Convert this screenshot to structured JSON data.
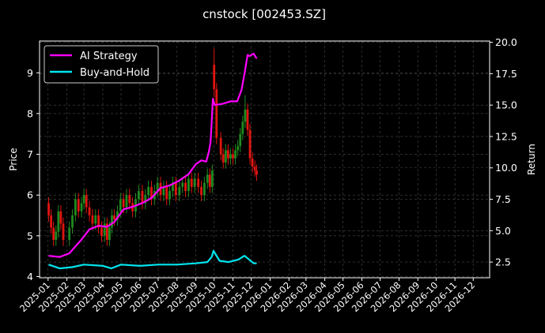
{
  "chart_data": {
    "type": "line",
    "title": "cnstock [002453.SZ]",
    "xlabel": "",
    "ylabel": "Price",
    "y2label": "Return",
    "ylim": [
      3.97,
      9.78
    ],
    "y2lim": [
      1.25,
      20.1
    ],
    "xlim": [
      "2024-12-18",
      "2026-12-28"
    ],
    "grid": true,
    "legend_position": "top-left",
    "x_tick_labels": [
      "2025-01",
      "2025-02",
      "2025-03",
      "2025-04",
      "2025-05",
      "2025-06",
      "2025-07",
      "2025-08",
      "2025-09",
      "2025-10",
      "2025-11",
      "2025-12",
      "2026-01",
      "2026-02",
      "2026-03",
      "2026-04",
      "2026-05",
      "2026-06",
      "2026-07",
      "2026-08",
      "2026-09",
      "2026-10",
      "2026-11",
      "2026-12"
    ],
    "y_tick_labels": [
      "4",
      "5",
      "6",
      "7",
      "8",
      "9"
    ],
    "y2_tick_labels": [
      "2.5",
      "5.0",
      "7.5",
      "10.0",
      "12.5",
      "15.0",
      "17.5",
      "20.0"
    ],
    "colors": {
      "strategy": "#ff00ff",
      "buyhold": "#00e5ee",
      "up": "#1f8a1f",
      "down": "#e0150f",
      "grid": "#4a4a4a"
    },
    "series": [
      {
        "name": "AI Strategy",
        "axis": "right",
        "x": [
          "2025-01-02",
          "2025-01-20",
          "2025-02-05",
          "2025-02-25",
          "2025-03-10",
          "2025-03-25",
          "2025-04-08",
          "2025-04-20",
          "2025-05-05",
          "2025-05-20",
          "2025-06-05",
          "2025-06-20",
          "2025-07-05",
          "2025-07-20",
          "2025-08-05",
          "2025-08-20",
          "2025-09-01",
          "2025-09-10",
          "2025-09-18",
          "2025-09-22",
          "2025-09-25",
          "2025-09-27",
          "2025-09-29",
          "2025-10-02",
          "2025-10-15",
          "2025-10-28",
          "2025-11-08",
          "2025-11-15",
          "2025-11-20",
          "2025-11-25",
          "2025-11-28",
          "2025-12-05",
          "2025-12-10"
        ],
        "y": [
          3.0,
          2.9,
          3.2,
          4.3,
          5.1,
          5.4,
          5.3,
          5.7,
          6.7,
          6.9,
          7.2,
          7.6,
          8.4,
          8.6,
          9.0,
          9.5,
          10.3,
          10.6,
          10.5,
          11.2,
          12.0,
          13.6,
          15.5,
          15.0,
          15.1,
          15.3,
          15.3,
          16.2,
          17.5,
          19.0,
          18.9,
          19.1,
          18.7
        ]
      },
      {
        "name": "Buy-and-Hold",
        "axis": "right",
        "x": [
          "2025-01-02",
          "2025-01-20",
          "2025-02-10",
          "2025-03-01",
          "2025-04-01",
          "2025-04-15",
          "2025-05-01",
          "2025-06-01",
          "2025-07-01",
          "2025-08-01",
          "2025-09-01",
          "2025-09-20",
          "2025-09-27",
          "2025-09-30",
          "2025-10-10",
          "2025-10-25",
          "2025-11-10",
          "2025-11-20",
          "2025-11-25",
          "2025-12-05",
          "2025-12-10"
        ],
        "y": [
          2.3,
          2.0,
          2.1,
          2.3,
          2.2,
          2.0,
          2.3,
          2.2,
          2.3,
          2.3,
          2.4,
          2.5,
          2.9,
          3.4,
          2.6,
          2.5,
          2.7,
          3.0,
          2.8,
          2.4,
          2.4
        ]
      },
      {
        "name": "candles",
        "axis": "left",
        "x": [
          "2025-01-02",
          "2025-01-06",
          "2025-01-10",
          "2025-01-14",
          "2025-01-18",
          "2025-01-22",
          "2025-01-26",
          "2025-02-05",
          "2025-02-10",
          "2025-02-15",
          "2025-02-20",
          "2025-02-25",
          "2025-03-01",
          "2025-03-05",
          "2025-03-10",
          "2025-03-15",
          "2025-03-20",
          "2025-03-25",
          "2025-03-30",
          "2025-04-04",
          "2025-04-08",
          "2025-04-12",
          "2025-04-16",
          "2025-04-20",
          "2025-04-25",
          "2025-04-30",
          "2025-05-05",
          "2025-05-10",
          "2025-05-15",
          "2025-05-20",
          "2025-05-25",
          "2025-05-30",
          "2025-06-05",
          "2025-06-10",
          "2025-06-15",
          "2025-06-20",
          "2025-06-25",
          "2025-06-30",
          "2025-07-05",
          "2025-07-10",
          "2025-07-15",
          "2025-07-20",
          "2025-07-25",
          "2025-07-30",
          "2025-08-05",
          "2025-08-10",
          "2025-08-15",
          "2025-08-20",
          "2025-08-25",
          "2025-08-30",
          "2025-09-05",
          "2025-09-10",
          "2025-09-15",
          "2025-09-20",
          "2025-09-24",
          "2025-09-28",
          "2025-10-01",
          "2025-10-05",
          "2025-10-12",
          "2025-10-16",
          "2025-10-20",
          "2025-10-24",
          "2025-10-28",
          "2025-11-01",
          "2025-11-05",
          "2025-11-09",
          "2025-11-13",
          "2025-11-17",
          "2025-11-21",
          "2025-11-25",
          "2025-11-29",
          "2025-12-03",
          "2025-12-07",
          "2025-12-10"
        ],
        "open": [
          5.8,
          5.5,
          5.2,
          4.9,
          5.1,
          5.6,
          5.3,
          4.9,
          5.2,
          5.5,
          5.9,
          5.6,
          5.8,
          6.0,
          5.7,
          5.5,
          5.3,
          5.5,
          5.2,
          5.0,
          5.3,
          4.9,
          5.2,
          5.5,
          5.4,
          5.6,
          5.9,
          5.7,
          6.0,
          5.8,
          5.6,
          5.9,
          6.1,
          5.8,
          6.0,
          6.2,
          5.9,
          6.1,
          6.3,
          6.0,
          6.2,
          5.9,
          6.1,
          6.3,
          6.0,
          6.2,
          6.3,
          6.1,
          6.4,
          6.2,
          6.4,
          6.2,
          6.0,
          6.3,
          6.5,
          6.2,
          9.2,
          8.6,
          7.4,
          7.0,
          6.8,
          7.1,
          6.9,
          7.0,
          6.9,
          7.1,
          7.2,
          7.5,
          7.8,
          8.1,
          7.6,
          6.9,
          6.7,
          6.6
        ],
        "close": [
          5.5,
          5.2,
          4.9,
          5.1,
          5.6,
          5.3,
          4.9,
          5.2,
          5.5,
          5.9,
          5.6,
          5.8,
          6.0,
          5.7,
          5.5,
          5.3,
          5.5,
          5.2,
          5.0,
          5.3,
          4.9,
          5.2,
          5.5,
          5.4,
          5.6,
          5.9,
          5.7,
          6.0,
          5.8,
          5.6,
          5.9,
          6.1,
          5.8,
          6.0,
          6.2,
          5.9,
          6.1,
          6.3,
          6.0,
          6.2,
          5.9,
          6.1,
          6.3,
          6.0,
          6.2,
          6.3,
          6.1,
          6.4,
          6.2,
          6.4,
          6.2,
          6.0,
          6.3,
          6.5,
          6.2,
          6.6,
          8.6,
          7.4,
          7.0,
          6.8,
          7.1,
          6.9,
          7.0,
          6.9,
          7.1,
          7.2,
          7.5,
          7.8,
          8.1,
          7.6,
          6.9,
          6.7,
          6.6,
          6.5
        ],
        "high": [
          5.95,
          5.65,
          5.35,
          5.25,
          5.75,
          5.75,
          5.45,
          5.35,
          5.65,
          6.05,
          6.05,
          5.95,
          6.15,
          6.15,
          5.85,
          5.65,
          5.65,
          5.65,
          5.35,
          5.45,
          5.45,
          5.35,
          5.65,
          5.65,
          5.75,
          6.05,
          6.05,
          6.15,
          6.15,
          5.95,
          6.05,
          6.25,
          6.25,
          6.15,
          6.35,
          6.35,
          6.25,
          6.45,
          6.45,
          6.35,
          6.35,
          6.25,
          6.45,
          6.45,
          6.35,
          6.45,
          6.45,
          6.55,
          6.55,
          6.55,
          6.55,
          6.35,
          6.45,
          6.65,
          6.65,
          6.75,
          9.6,
          8.75,
          7.55,
          7.15,
          7.25,
          7.25,
          7.15,
          7.15,
          7.25,
          7.35,
          7.65,
          7.95,
          8.45,
          8.25,
          7.75,
          7.05,
          6.85,
          6.75
        ],
        "low": [
          5.35,
          5.05,
          4.75,
          4.75,
          4.95,
          5.15,
          4.75,
          4.75,
          5.05,
          5.35,
          5.45,
          5.45,
          5.65,
          5.55,
          5.35,
          5.15,
          5.15,
          5.05,
          4.85,
          4.85,
          4.75,
          4.75,
          5.05,
          5.25,
          5.25,
          5.45,
          5.55,
          5.55,
          5.65,
          5.45,
          5.45,
          5.75,
          5.65,
          5.65,
          5.85,
          5.75,
          5.75,
          5.95,
          5.85,
          5.85,
          5.75,
          5.75,
          5.95,
          5.85,
          5.85,
          6.05,
          5.95,
          5.95,
          6.05,
          6.05,
          6.05,
          5.85,
          5.85,
          6.15,
          6.05,
          6.05,
          8.4,
          7.25,
          6.85,
          6.65,
          6.65,
          6.75,
          6.75,
          6.75,
          6.75,
          6.95,
          7.05,
          7.35,
          7.65,
          7.45,
          6.75,
          6.55,
          6.45,
          6.35
        ]
      }
    ]
  }
}
